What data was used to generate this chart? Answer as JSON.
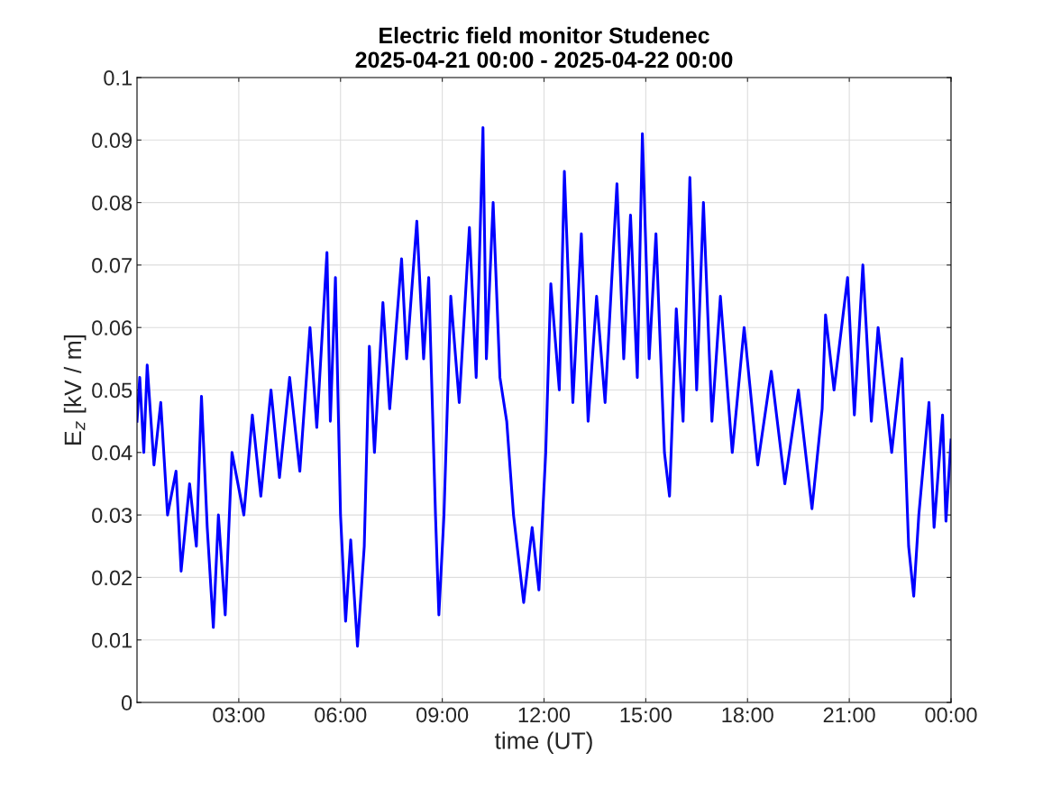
{
  "chart_data": {
    "type": "line",
    "title": "Electric field monitor Studenec\n2025-04-21 00:00 - 2025-04-22 00:00",
    "xlabel": "time (UT)",
    "ylabel": "E$_{z}$ [kV / m]",
    "series": [
      {
        "color": "#0000ff",
        "x": [
          0,
          0.08,
          0.2,
          0.3,
          0.5,
          0.7,
          0.9,
          1.15,
          1.3,
          1.55,
          1.75,
          1.9,
          2.07,
          2.25,
          2.4,
          2.6,
          2.8,
          3.15,
          3.4,
          3.65,
          3.95,
          4.2,
          4.5,
          4.8,
          5.1,
          5.3,
          5.6,
          5.7,
          5.85,
          6.0,
          6.15,
          6.3,
          6.5,
          6.7,
          6.85,
          7.0,
          7.25,
          7.45,
          7.8,
          7.95,
          8.25,
          8.45,
          8.6,
          8.8,
          8.9,
          9.05,
          9.25,
          9.5,
          9.8,
          10.0,
          10.2,
          10.3,
          10.5,
          10.7,
          10.9,
          11.1,
          11.4,
          11.65,
          11.85,
          12.05,
          12.2,
          12.45,
          12.6,
          12.85,
          13.1,
          13.3,
          13.55,
          13.8,
          14.15,
          14.35,
          14.55,
          14.75,
          14.9,
          15.1,
          15.3,
          15.55,
          15.7,
          15.9,
          16.1,
          16.3,
          16.5,
          16.7,
          16.95,
          17.2,
          17.55,
          17.9,
          18.3,
          18.7,
          19.1,
          19.5,
          19.9,
          20.2,
          20.3,
          20.55,
          20.95,
          21.15,
          21.4,
          21.65,
          21.85,
          22.25,
          22.55,
          22.75,
          22.9,
          23.05,
          23.35,
          23.5,
          23.75,
          23.85,
          24
        ],
        "values": [
          0.045,
          0.052,
          0.04,
          0.054,
          0.038,
          0.048,
          0.03,
          0.037,
          0.021,
          0.035,
          0.025,
          0.049,
          0.028,
          0.012,
          0.03,
          0.014,
          0.04,
          0.03,
          0.046,
          0.033,
          0.05,
          0.036,
          0.052,
          0.037,
          0.06,
          0.044,
          0.072,
          0.045,
          0.068,
          0.03,
          0.013,
          0.026,
          0.009,
          0.025,
          0.057,
          0.04,
          0.064,
          0.047,
          0.071,
          0.055,
          0.077,
          0.055,
          0.068,
          0.03,
          0.014,
          0.03,
          0.065,
          0.048,
          0.076,
          0.052,
          0.092,
          0.055,
          0.08,
          0.052,
          0.045,
          0.03,
          0.016,
          0.028,
          0.018,
          0.04,
          0.067,
          0.05,
          0.085,
          0.048,
          0.075,
          0.045,
          0.065,
          0.048,
          0.083,
          0.055,
          0.078,
          0.052,
          0.091,
          0.055,
          0.075,
          0.04,
          0.033,
          0.063,
          0.045,
          0.084,
          0.05,
          0.08,
          0.045,
          0.065,
          0.04,
          0.06,
          0.038,
          0.053,
          0.035,
          0.05,
          0.031,
          0.047,
          0.062,
          0.05,
          0.068,
          0.046,
          0.07,
          0.045,
          0.06,
          0.04,
          0.055,
          0.025,
          0.017,
          0.03,
          0.048,
          0.028,
          0.046,
          0.029,
          0.042
        ]
      }
    ],
    "xlim": [
      0,
      24
    ],
    "xticks": [
      {
        "value": 3,
        "label": "03:00"
      },
      {
        "value": 6,
        "label": "06:00"
      },
      {
        "value": 9,
        "label": "09:00"
      },
      {
        "value": 12,
        "label": "12:00"
      },
      {
        "value": 15,
        "label": "15:00"
      },
      {
        "value": 18,
        "label": "18:00"
      },
      {
        "value": 21,
        "label": "21:00"
      },
      {
        "value": 24,
        "label": "00:00"
      }
    ],
    "ylim": [
      0,
      0.1
    ],
    "yticks": [
      0,
      0.01,
      0.02,
      0.03,
      0.04,
      0.05,
      0.06,
      0.07,
      0.08,
      0.09,
      0.1
    ],
    "grid": true,
    "line_style": "solid",
    "marker": "none"
  }
}
